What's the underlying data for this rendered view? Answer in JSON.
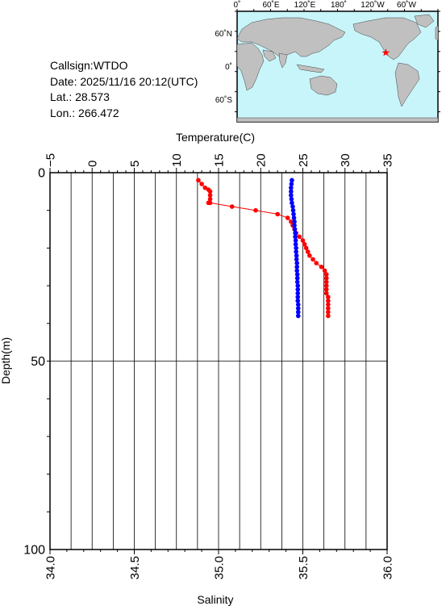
{
  "info": {
    "callsign": "Callsign:WTDO",
    "date": "Date:  2025/11/16 20:12(UTC)",
    "lat": "Lat.:   28.573",
    "lon": "Lon.:  266.472"
  },
  "map": {
    "top_labels": [
      "0˚",
      "60˚E",
      "120˚E",
      "180˚",
      "120˚W",
      "60˚W"
    ],
    "left_labels": [
      "60˚N",
      "0˚",
      "60˚S"
    ],
    "ocean_color": "#c8f5fa",
    "land_color": "#c0c0c0",
    "marker_color": "#ff0000",
    "marker_icon": "star-icon",
    "marker_lat": 28.573,
    "marker_lon": 266.472
  },
  "chart_data": {
    "type": "scatter",
    "title": "",
    "temperature_axis": {
      "label": "Temperature(C)",
      "range": [
        -5,
        35
      ],
      "ticks": [
        -5,
        0,
        5,
        10,
        15,
        20,
        25,
        30,
        35
      ],
      "tick_labels": [
        "−5",
        "0",
        "5",
        "10",
        "15",
        "20",
        "25",
        "30",
        "35"
      ]
    },
    "salinity_axis": {
      "label": "Salinity",
      "range": [
        34.0,
        36.0
      ],
      "ticks": [
        34.0,
        34.5,
        35.0,
        35.5,
        36.0
      ],
      "tick_labels": [
        "34.0",
        "34.5",
        "35.0",
        "35.5",
        "36.0"
      ]
    },
    "depth_axis": {
      "label": "Depth(m)",
      "range": [
        0,
        100
      ],
      "ticks": [
        0,
        50,
        100
      ],
      "tick_labels": [
        "0",
        "50",
        "100"
      ]
    },
    "grid": true,
    "series": [
      {
        "color": "#ff0000",
        "x_axis": "salinity",
        "points": [
          [
            34.88,
            2
          ],
          [
            34.9,
            3
          ],
          [
            34.92,
            4
          ],
          [
            34.94,
            4.5
          ],
          [
            34.95,
            5
          ],
          [
            34.95,
            6
          ],
          [
            34.95,
            7
          ],
          [
            34.94,
            8
          ],
          [
            34.95,
            8
          ],
          [
            35.08,
            9
          ],
          [
            35.22,
            10
          ],
          [
            35.35,
            11
          ],
          [
            35.41,
            12
          ],
          [
            35.43,
            13
          ],
          [
            35.44,
            14
          ],
          [
            35.45,
            15
          ],
          [
            35.46,
            16
          ],
          [
            35.48,
            17
          ],
          [
            35.5,
            18
          ],
          [
            35.51,
            19
          ],
          [
            35.52,
            20
          ],
          [
            35.53,
            21
          ],
          [
            35.54,
            22
          ],
          [
            35.56,
            23
          ],
          [
            35.58,
            24
          ],
          [
            35.61,
            25
          ],
          [
            35.63,
            26
          ],
          [
            35.64,
            27
          ],
          [
            35.64,
            28
          ],
          [
            35.64,
            29
          ],
          [
            35.64,
            30
          ],
          [
            35.64,
            31
          ],
          [
            35.64,
            32
          ],
          [
            35.65,
            33
          ],
          [
            35.65,
            34
          ],
          [
            35.65,
            35
          ],
          [
            35.65,
            36
          ],
          [
            35.65,
            37
          ],
          [
            35.65,
            38
          ]
        ]
      },
      {
        "color": "#0000ff",
        "x_axis": "temperature",
        "points": [
          [
            23.7,
            2
          ],
          [
            23.65,
            3
          ],
          [
            23.6,
            4
          ],
          [
            23.6,
            5
          ],
          [
            23.6,
            6
          ],
          [
            23.65,
            7
          ],
          [
            23.7,
            8
          ],
          [
            23.8,
            9
          ],
          [
            23.85,
            10
          ],
          [
            23.9,
            11
          ],
          [
            23.95,
            12
          ],
          [
            24.0,
            13
          ],
          [
            24.0,
            14
          ],
          [
            24.05,
            15
          ],
          [
            24.1,
            16
          ],
          [
            24.1,
            17
          ],
          [
            24.15,
            18
          ],
          [
            24.15,
            19
          ],
          [
            24.2,
            20
          ],
          [
            24.2,
            21
          ],
          [
            24.25,
            22
          ],
          [
            24.25,
            23
          ],
          [
            24.3,
            24
          ],
          [
            24.3,
            25
          ],
          [
            24.3,
            26
          ],
          [
            24.35,
            27
          ],
          [
            24.35,
            28
          ],
          [
            24.35,
            29
          ],
          [
            24.4,
            30
          ],
          [
            24.4,
            31
          ],
          [
            24.4,
            32
          ],
          [
            24.4,
            33
          ],
          [
            24.4,
            34
          ],
          [
            24.45,
            35
          ],
          [
            24.45,
            36
          ],
          [
            24.45,
            37
          ],
          [
            24.45,
            38
          ]
        ]
      }
    ]
  }
}
